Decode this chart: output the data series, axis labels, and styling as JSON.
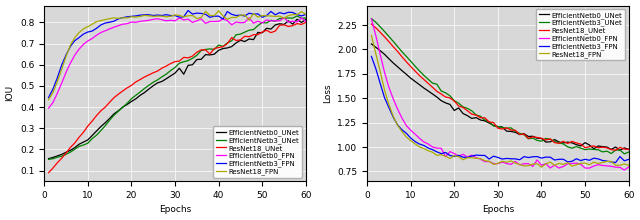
{
  "left_ylabel": "IOU",
  "right_ylabel": "Loss",
  "xlabel": "Epochs",
  "legend_labels": [
    "EfficientNetb0_UNet",
    "EfficientNetb3_UNet",
    "ResNet18_UNet",
    "EfficientNetb0_FPN",
    "EfficientNetb3_FPN",
    "ResNet18_FPN"
  ],
  "colors": [
    "black",
    "green",
    "red",
    "magenta",
    "blue",
    "#aaaa00"
  ],
  "background_color": "#d8d8d8",
  "fontsize": 6.5,
  "linewidth": 0.9,
  "iou_ylim": [
    0.05,
    0.88
  ],
  "iou_yticks": [
    0.1,
    0.2,
    0.3,
    0.4,
    0.5,
    0.6,
    0.7,
    0.8
  ],
  "loss_ylim": [
    0.65,
    2.45
  ],
  "loss_yticks": [
    0.75,
    1.0,
    1.25,
    1.5,
    1.75,
    2.0,
    2.25
  ],
  "xticks": [
    0,
    10,
    20,
    30,
    40,
    50,
    60
  ]
}
